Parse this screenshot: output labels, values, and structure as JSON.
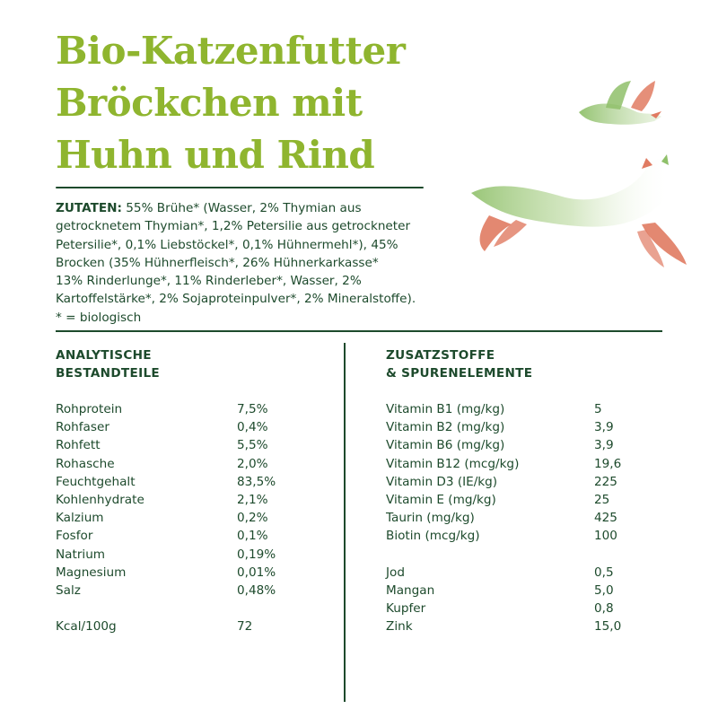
{
  "title": {
    "line1": "Bio-Katzenfutter",
    "line2": "Bröckchen mit",
    "line3": "Huhn und Rind"
  },
  "ingredients": {
    "label": "ZUTATEN:",
    "lines": [
      " 55% Brühe* (Wasser, 2% Thymian aus",
      "getrocknetem Thymian*, 1,2% Petersilie aus getrockneter",
      "Petersilie*, 0,1% Liebstöckel*, 0,1% Hühnermehl*), 45%",
      "Brocken (35% Hühnerfleisch*, 26% Hühnerkarkasse*",
      "13% Rinderlunge*, 11% Rinderleber*, Wasser, 2%",
      "Kartoffelstärke*, 2% Sojaproteinpulver*, 2% Mineralstoffe).",
      "* = biologisch"
    ]
  },
  "analytics": {
    "heading_line1": "ANALYTISCHE",
    "heading_line2": "BESTANDTEILE",
    "rows": [
      {
        "name": "Rohprotein",
        "value": "7,5%"
      },
      {
        "name": "Rohfaser",
        "value": "0,4%"
      },
      {
        "name": "Rohfett",
        "value": "5,5%"
      },
      {
        "name": "Rohasche",
        "value": "2,0%"
      },
      {
        "name": "Feuchtgehalt",
        "value": "83,5%"
      },
      {
        "name": "Kohlenhydrate",
        "value": "2,1%"
      },
      {
        "name": "Kalzium",
        "value": "0,2%"
      },
      {
        "name": "Fosfor",
        "value": "0,1%"
      },
      {
        "name": "Natrium",
        "value": "0,19%"
      },
      {
        "name": "Magnesium",
        "value": "0,01%"
      },
      {
        "name": "Salz",
        "value": "0,48%"
      }
    ],
    "energy": {
      "name": "Kcal/100g",
      "value": "72"
    }
  },
  "additives": {
    "heading_line1": "ZUSATZSTOFFE",
    "heading_line2": "& SPURENELEMENTE",
    "vitamins": [
      {
        "name": "Vitamin B1 (mg/kg)",
        "value": "5"
      },
      {
        "name": "Vitamin B2 (mg/kg)",
        "value": "3,9"
      },
      {
        "name": "Vitamin B6 (mg/kg)",
        "value": "3,9"
      },
      {
        "name": "Vitamin B12 (mcg/kg)",
        "value": "19,6"
      },
      {
        "name": "Vitamin D3 (IE/kg)",
        "value": "225"
      },
      {
        "name": "Vitamin E (mg/kg)",
        "value": "25"
      },
      {
        "name": "Taurin (mg/kg)",
        "value": "425"
      },
      {
        "name": "Biotin (mcg/kg)",
        "value": "100"
      }
    ],
    "trace": [
      {
        "name": "Jod",
        "value": "0,5"
      },
      {
        "name": "Mangan",
        "value": "5,0"
      },
      {
        "name": "Kupfer",
        "value": "0,8"
      },
      {
        "name": "Zink",
        "value": "15,0"
      }
    ]
  },
  "colors": {
    "title_green": "#8fb52f",
    "text_dark_green": "#1d4a2c",
    "illustration_salmon": "#e07b62",
    "illustration_green": "#8fc06a"
  },
  "illustration": {
    "icon": "cat-and-bird-illustration"
  }
}
